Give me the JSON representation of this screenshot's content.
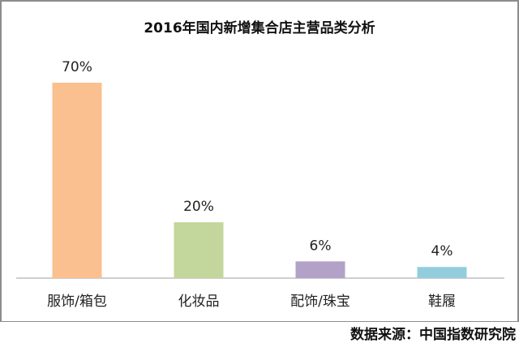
{
  "chart_data": {
    "type": "bar",
    "title": "2016年国内新增集合店主营品类分析",
    "categories": [
      "服饰/箱包",
      "化妆品",
      "配饰/珠宝",
      "鞋履"
    ],
    "values": [
      70,
      20,
      6,
      4
    ],
    "data_labels": [
      "70%",
      "20%",
      "6%",
      "4%"
    ],
    "colors": [
      "#FAC090",
      "#C3D69B",
      "#B3A2C7",
      "#93CDDD"
    ],
    "xlabel": "",
    "ylabel": "",
    "ylim": [
      0,
      70
    ],
    "grid": false,
    "legend": "none"
  },
  "source": "数据来源：中国指数研究院"
}
